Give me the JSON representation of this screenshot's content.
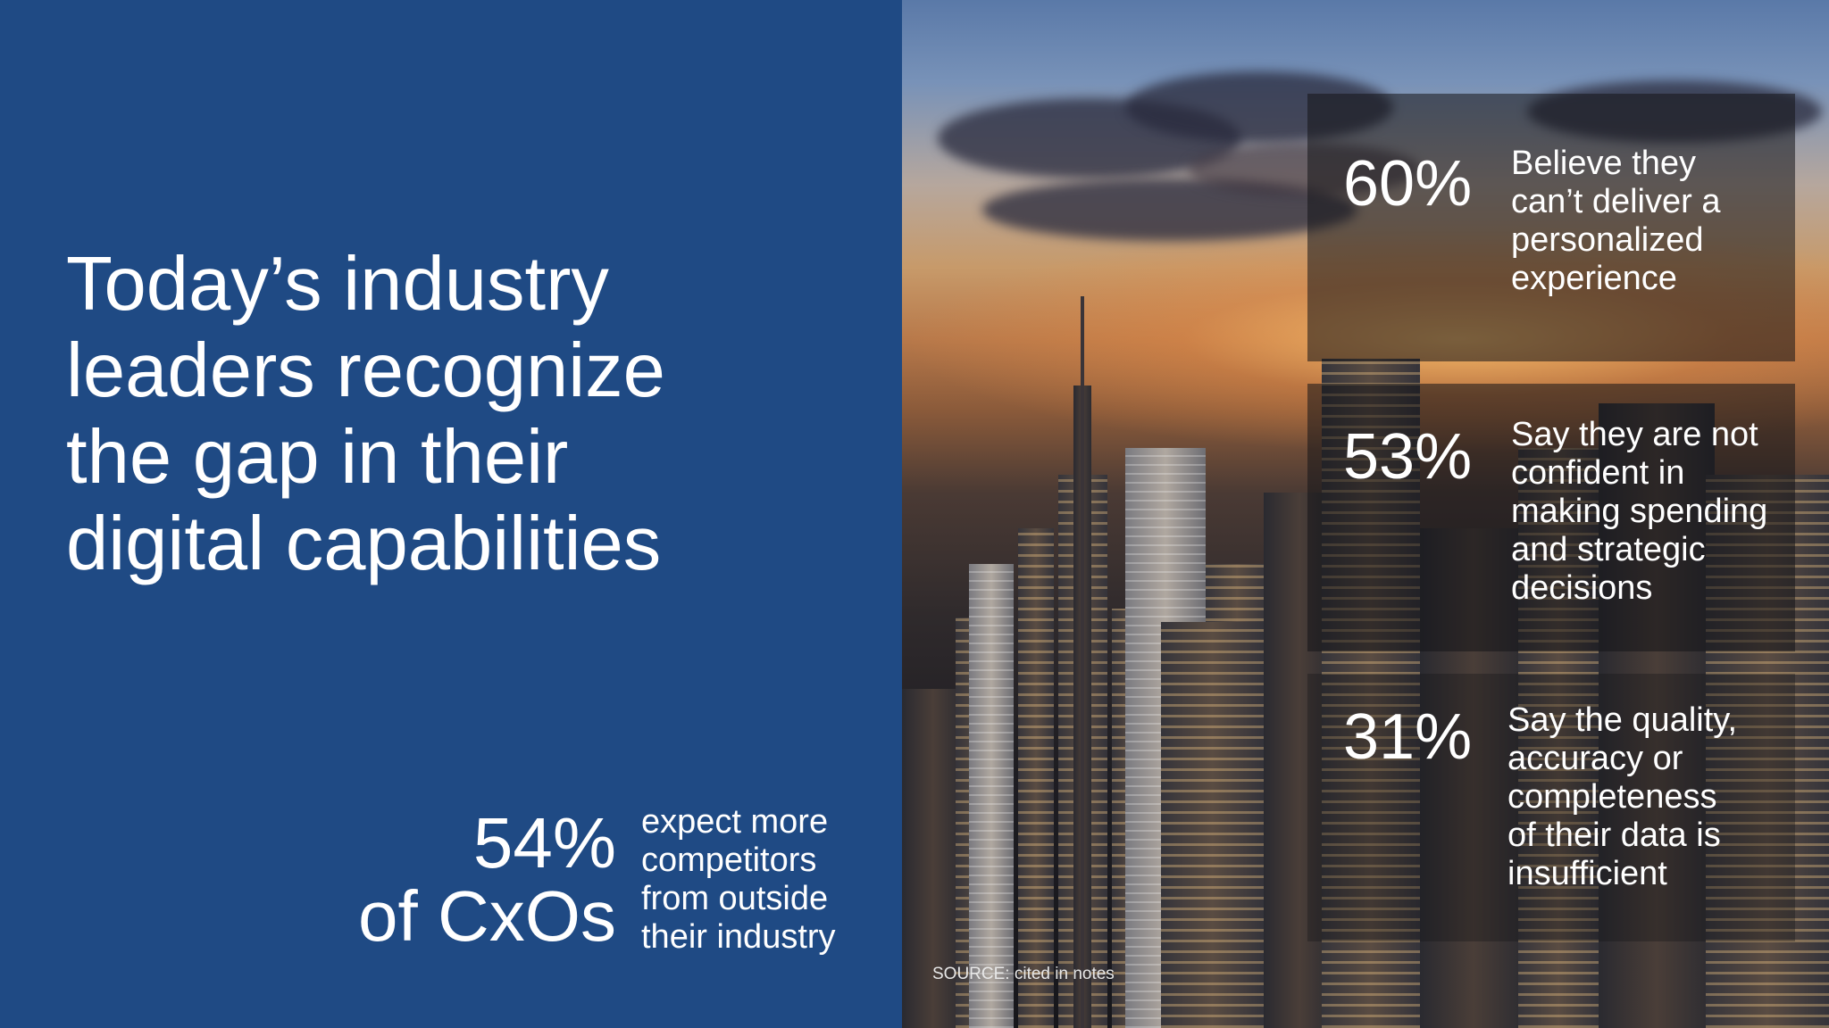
{
  "slide": {
    "headline": "Today’s industry leaders recognize the gap in their digital capabilities",
    "headline_lines": [
      "Today’s industry",
      "leaders recognize",
      "the gap in their",
      "digital capabilities"
    ],
    "left_stat": {
      "value": "54%",
      "subject": "of CxOs",
      "description_lines": [
        "expect more",
        "competitors",
        "from outside",
        "their industry"
      ]
    },
    "right_stats": [
      {
        "value": "60%",
        "description_lines": [
          "Believe they",
          "can’t deliver a",
          "personalized",
          "experience"
        ]
      },
      {
        "value": "53%",
        "description_lines": [
          "Say they are not",
          "confident in",
          "making spending",
          "and strategic",
          "decisions"
        ]
      },
      {
        "value": "31%",
        "description_lines": [
          "Say the quality,",
          "accuracy or",
          "completeness",
          "of their data is",
          "insufficient"
        ]
      }
    ],
    "source": "SOURCE: cited in notes"
  },
  "colors": {
    "left_panel": "#1f4a84",
    "text": "#ffffff",
    "stat_box_overlay": "rgba(20,20,24,0.55)"
  }
}
